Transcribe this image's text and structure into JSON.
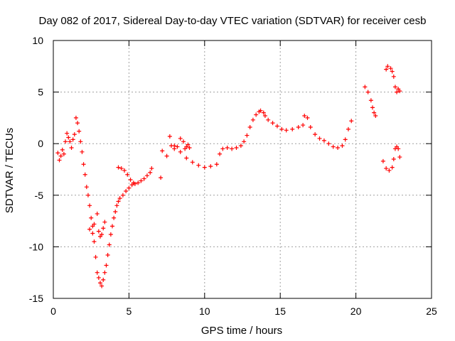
{
  "chart_data": {
    "type": "scatter",
    "title": "Day 082 of 2017, Sidereal Day-to-day VTEC variation (SDTVAR) for receiver cesb",
    "xlabel": "GPS time / hours",
    "ylabel": "SDTVAR / TECUs",
    "xlim": [
      0,
      25
    ],
    "ylim": [
      -15,
      10
    ],
    "x_ticks": [
      0,
      5,
      10,
      15,
      20,
      25
    ],
    "y_ticks": [
      -15,
      -10,
      -5,
      0,
      5,
      10
    ],
    "grid": true,
    "marker": "+",
    "series_color": "#ff0000",
    "series": [
      {
        "points": [
          [
            0.3,
            -0.9
          ],
          [
            0.4,
            -1.6
          ],
          [
            0.5,
            -1.2
          ],
          [
            0.6,
            -0.6
          ],
          [
            0.7,
            -1.0
          ],
          [
            0.8,
            0.2
          ],
          [
            0.9,
            1.0
          ],
          [
            1.0,
            0.6
          ],
          [
            1.1,
            0.2
          ],
          [
            1.2,
            -0.4
          ],
          [
            1.3,
            0.4
          ],
          [
            1.4,
            0.9
          ],
          [
            1.5,
            2.5
          ],
          [
            1.6,
            2.0
          ],
          [
            1.7,
            1.2
          ],
          [
            1.8,
            0.2
          ],
          [
            1.9,
            -0.8
          ],
          [
            2.0,
            -2.0
          ],
          [
            2.1,
            -3.0
          ],
          [
            2.2,
            -4.2
          ],
          [
            2.3,
            -5.0
          ],
          [
            2.4,
            -6.0
          ],
          [
            2.5,
            -7.2
          ],
          [
            2.6,
            -8.0
          ],
          [
            2.7,
            -9.5
          ],
          [
            2.8,
            -11.0
          ],
          [
            2.9,
            -12.5
          ],
          [
            3.0,
            -13.0
          ],
          [
            3.1,
            -13.5
          ],
          [
            3.2,
            -13.8
          ],
          [
            3.3,
            -13.2
          ],
          [
            3.4,
            -12.5
          ],
          [
            3.5,
            -11.8
          ],
          [
            3.6,
            -10.8
          ],
          [
            3.7,
            -9.8
          ],
          [
            3.8,
            -8.8
          ],
          [
            3.9,
            -8.0
          ],
          [
            4.0,
            -7.2
          ],
          [
            4.1,
            -6.6
          ],
          [
            4.2,
            -6.0
          ],
          [
            4.3,
            -5.6
          ],
          [
            4.4,
            -5.3
          ],
          [
            4.6,
            -5.0
          ],
          [
            4.8,
            -4.6
          ],
          [
            5.0,
            -4.3
          ],
          [
            5.2,
            -4.0
          ],
          [
            5.4,
            -3.9
          ],
          [
            5.6,
            -3.8
          ],
          [
            5.8,
            -3.6
          ],
          [
            6.0,
            -3.4
          ],
          [
            6.2,
            -3.1
          ],
          [
            6.4,
            -2.8
          ],
          [
            6.5,
            -2.4
          ],
          [
            2.4,
            -8.3
          ],
          [
            2.6,
            -8.7
          ],
          [
            2.7,
            -7.8
          ],
          [
            2.9,
            -6.8
          ],
          [
            3.0,
            -8.5
          ],
          [
            3.1,
            -9.0
          ],
          [
            3.2,
            -8.8
          ],
          [
            3.3,
            -8.2
          ],
          [
            3.4,
            -7.6
          ],
          [
            4.3,
            -2.3
          ],
          [
            4.5,
            -2.4
          ],
          [
            4.7,
            -2.6
          ],
          [
            4.9,
            -3.0
          ],
          [
            5.1,
            -3.5
          ],
          [
            5.3,
            -3.8
          ],
          [
            7.1,
            -3.3
          ],
          [
            7.2,
            -0.7
          ],
          [
            7.5,
            -1.2
          ],
          [
            7.7,
            0.7
          ],
          [
            7.8,
            -0.2
          ],
          [
            8.0,
            -0.5
          ],
          [
            8.2,
            -0.3
          ],
          [
            8.4,
            0.5
          ],
          [
            8.6,
            0.2
          ],
          [
            8.7,
            -0.5
          ],
          [
            8.8,
            -0.3
          ],
          [
            8.9,
            -0.1
          ],
          [
            9.0,
            -0.4
          ],
          [
            8.0,
            -0.2
          ],
          [
            8.4,
            -0.8
          ],
          [
            8.8,
            -1.4
          ],
          [
            9.2,
            -1.8
          ],
          [
            9.6,
            -2.1
          ],
          [
            10.0,
            -2.3
          ],
          [
            10.4,
            -2.2
          ],
          [
            10.8,
            -2.0
          ],
          [
            11.0,
            -1.0
          ],
          [
            11.2,
            -0.5
          ],
          [
            11.5,
            -0.4
          ],
          [
            11.8,
            -0.5
          ],
          [
            12.1,
            -0.4
          ],
          [
            12.4,
            -0.2
          ],
          [
            12.6,
            0.2
          ],
          [
            12.8,
            0.8
          ],
          [
            13.0,
            1.6
          ],
          [
            13.2,
            2.3
          ],
          [
            13.4,
            2.8
          ],
          [
            13.6,
            3.1
          ],
          [
            13.7,
            3.2
          ],
          [
            13.9,
            3.0
          ],
          [
            14.0,
            2.7
          ],
          [
            14.2,
            2.3
          ],
          [
            14.5,
            2.0
          ],
          [
            14.8,
            1.7
          ],
          [
            15.1,
            1.4
          ],
          [
            15.4,
            1.3
          ],
          [
            15.8,
            1.4
          ],
          [
            16.2,
            1.6
          ],
          [
            16.5,
            1.8
          ],
          [
            16.6,
            2.7
          ],
          [
            16.8,
            2.5
          ],
          [
            17.0,
            1.6
          ],
          [
            17.3,
            0.9
          ],
          [
            17.6,
            0.5
          ],
          [
            17.9,
            0.3
          ],
          [
            18.2,
            0.0
          ],
          [
            18.5,
            -0.3
          ],
          [
            18.8,
            -0.4
          ],
          [
            19.1,
            -0.2
          ],
          [
            19.3,
            0.4
          ],
          [
            19.5,
            1.4
          ],
          [
            19.7,
            2.2
          ],
          [
            20.6,
            5.5
          ],
          [
            20.8,
            5.0
          ],
          [
            21.0,
            4.2
          ],
          [
            21.1,
            3.5
          ],
          [
            21.2,
            3.0
          ],
          [
            21.3,
            2.7
          ],
          [
            21.8,
            -1.7
          ],
          [
            22.0,
            -2.4
          ],
          [
            22.2,
            -2.6
          ],
          [
            22.4,
            -2.3
          ],
          [
            22.5,
            -1.5
          ],
          [
            22.6,
            -0.5
          ],
          [
            22.7,
            -0.3
          ],
          [
            22.8,
            -0.5
          ],
          [
            22.9,
            -1.3
          ],
          [
            22.0,
            7.2
          ],
          [
            22.1,
            7.5
          ],
          [
            22.3,
            7.3
          ],
          [
            22.4,
            7.0
          ],
          [
            22.5,
            6.5
          ],
          [
            22.6,
            5.5
          ],
          [
            22.7,
            5.0
          ],
          [
            22.8,
            5.3
          ],
          [
            22.9,
            5.1
          ]
        ]
      }
    ]
  }
}
